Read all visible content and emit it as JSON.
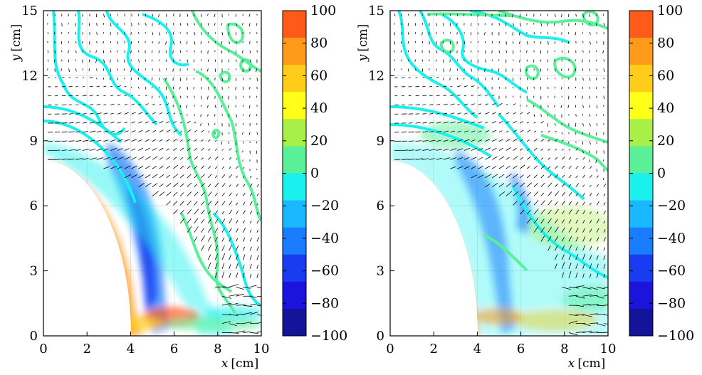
{
  "chart_data": [
    {
      "type": "heatmap",
      "subtype": "contour-map with velocity vectors",
      "xlabel_var": "x",
      "xlabel_unit": "[cm]",
      "ylabel_var": "y",
      "ylabel_unit": "[cm]",
      "xlim": [
        0,
        10
      ],
      "ylim": [
        0,
        15
      ],
      "xticks": [
        0,
        2,
        4,
        6,
        8,
        10
      ],
      "yticks": [
        0,
        3,
        6,
        9,
        12,
        15
      ],
      "grid": true,
      "obstacle": {
        "shape": "circle",
        "center": [
          0,
          0
        ],
        "radius": 8.1
      },
      "colorbar": {
        "min": -100,
        "max": 100,
        "ticks": [
          "100",
          "80",
          "60",
          "40",
          "20",
          "0",
          "−20",
          "−40",
          "−60",
          "−80",
          "−100"
        ],
        "colors": [
          "#ff5a1a",
          "#ff9a1a",
          "#ffcc1a",
          "#ffff1a",
          "#a8f048",
          "#5af09a",
          "#1af0ee",
          "#1ab8ff",
          "#1a7cff",
          "#1a3cf0",
          "#1a14dc",
          "#14149b"
        ]
      }
    },
    {
      "type": "heatmap",
      "subtype": "contour-map with velocity vectors",
      "xlabel_var": "x",
      "xlabel_unit": "[cm]",
      "ylabel_var": "y",
      "ylabel_unit": "[cm]",
      "xlim": [
        0,
        10
      ],
      "ylim": [
        0,
        15
      ],
      "xticks": [
        0,
        2,
        4,
        6,
        8,
        10
      ],
      "yticks": [
        0,
        3,
        6,
        9,
        12,
        15
      ],
      "grid": true,
      "obstacle": {
        "shape": "circle",
        "center": [
          0,
          0
        ],
        "radius": 8.1
      },
      "colorbar": {
        "min": -100,
        "max": 100,
        "ticks": [
          "100",
          "80",
          "60",
          "40",
          "20",
          "0",
          "−20",
          "−40",
          "−60",
          "−80",
          "−100"
        ],
        "colors": [
          "#ff5a1a",
          "#ff9a1a",
          "#ffcc1a",
          "#ffff1a",
          "#a8f048",
          "#5af09a",
          "#1af0ee",
          "#1ab8ff",
          "#1a7cff",
          "#1a3cf0",
          "#1a14dc",
          "#14149b"
        ]
      }
    }
  ]
}
